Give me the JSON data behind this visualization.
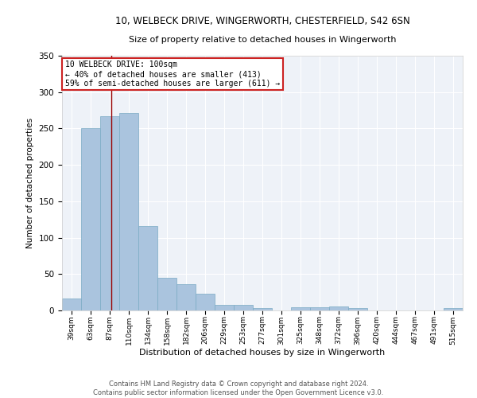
{
  "title_line1": "10, WELBECK DRIVE, WINGERWORTH, CHESTERFIELD, S42 6SN",
  "title_line2": "Size of property relative to detached houses in Wingerworth",
  "xlabel": "Distribution of detached houses by size in Wingerworth",
  "ylabel": "Number of detached properties",
  "footer_line1": "Contains HM Land Registry data © Crown copyright and database right 2024.",
  "footer_line2": "Contains public sector information licensed under the Open Government Licence v3.0.",
  "bin_labels": [
    "39sqm",
    "63sqm",
    "87sqm",
    "110sqm",
    "134sqm",
    "158sqm",
    "182sqm",
    "206sqm",
    "229sqm",
    "253sqm",
    "277sqm",
    "301sqm",
    "325sqm",
    "348sqm",
    "372sqm",
    "396sqm",
    "420sqm",
    "444sqm",
    "467sqm",
    "491sqm",
    "515sqm"
  ],
  "bar_values": [
    16,
    250,
    267,
    271,
    116,
    45,
    36,
    23,
    8,
    8,
    3,
    0,
    4,
    4,
    5,
    3,
    0,
    0,
    0,
    0,
    3
  ],
  "bar_color": "#aac4de",
  "bar_edgecolor": "#7aaac4",
  "background_color": "#eef2f8",
  "grid_color": "#ffffff",
  "annotation_box_text": "10 WELBECK DRIVE: 100sqm\n← 40% of detached houses are smaller (413)\n59% of semi-detached houses are larger (611) →",
  "ylim": [
    0,
    350
  ],
  "yticks": [
    0,
    50,
    100,
    150,
    200,
    250,
    300,
    350
  ],
  "bin_starts": [
    39,
    63,
    87,
    110,
    134,
    158,
    182,
    206,
    229,
    253,
    277,
    301,
    325,
    348,
    372,
    396,
    420,
    444,
    467,
    491,
    515
  ],
  "property_sqm": 100
}
